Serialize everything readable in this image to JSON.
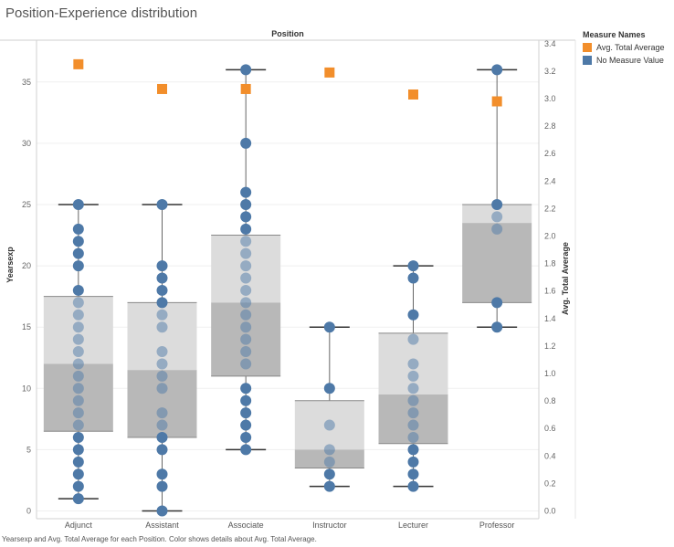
{
  "title": "Position-Experience distribution",
  "caption": "Yearsexp and Avg. Total Average for each Position.  Color shows details about Avg. Total Average.",
  "legend": {
    "title": "Measure Names",
    "items": [
      {
        "label": "Avg. Total Average",
        "color": "#f28e2b",
        "shape": "square"
      },
      {
        "label": "No Measure Value",
        "color": "#4e79a7",
        "shape": "circle"
      }
    ]
  },
  "chart_data": {
    "type": "box",
    "title": "Position-Experience distribution",
    "column_header": "Position",
    "categories": [
      "Adjunct",
      "Assistant",
      "Associate",
      "Instructor",
      "Lecturer",
      "Professor"
    ],
    "left_axis": {
      "label": "Yearsexp",
      "range": [
        0,
        38
      ],
      "ticks": [
        0,
        5,
        10,
        15,
        20,
        25,
        30,
        35
      ]
    },
    "right_axis": {
      "label": "Avg. Total Average",
      "range": [
        0,
        3.4
      ],
      "ticks": [
        "0.0",
        "0.2",
        "0.4",
        "0.6",
        "0.8",
        "1.0",
        "1.2",
        "1.4",
        "1.6",
        "1.8",
        "2.0",
        "2.2",
        "2.4",
        "2.6",
        "2.8",
        "3.0",
        "3.2",
        "3.4"
      ]
    },
    "grid": true,
    "boxes": [
      {
        "category": "Adjunct",
        "min": 1,
        "q1": 6.5,
        "median": 12,
        "q3": 17.5,
        "max": 25
      },
      {
        "category": "Assistant",
        "min": 0,
        "q1": 6,
        "median": 11.5,
        "q3": 17,
        "max": 25
      },
      {
        "category": "Associate",
        "min": 5,
        "q1": 11,
        "median": 17,
        "q3": 22.5,
        "max": 36
      },
      {
        "category": "Instructor",
        "min": 2,
        "q1": 3.5,
        "median": 5,
        "q3": 9,
        "max": 15
      },
      {
        "category": "Lecturer",
        "min": 2,
        "q1": 5.5,
        "median": 9.5,
        "q3": 14.5,
        "max": 20
      },
      {
        "category": "Professor",
        "min": 15,
        "q1": 17,
        "median": 23.5,
        "q3": 25,
        "max": 36
      }
    ],
    "yearsexp_points": [
      {
        "category": "Adjunct",
        "values": [
          1,
          2,
          3,
          4,
          5,
          6,
          7,
          8,
          9,
          10,
          11,
          12,
          13,
          14,
          15,
          16,
          17,
          18,
          20,
          21,
          22,
          23,
          25
        ]
      },
      {
        "category": "Assistant",
        "values": [
          0,
          2,
          3,
          5,
          6,
          7,
          8,
          10,
          11,
          12,
          13,
          15,
          16,
          17,
          18,
          19,
          20,
          25
        ]
      },
      {
        "category": "Associate",
        "values": [
          5,
          6,
          7,
          8,
          9,
          10,
          12,
          13,
          14,
          15,
          16,
          17,
          18,
          19,
          20,
          21,
          22,
          23,
          24,
          25,
          26,
          30,
          36
        ]
      },
      {
        "category": "Instructor",
        "values": [
          2,
          3,
          4,
          5,
          7,
          10,
          15
        ]
      },
      {
        "category": "Lecturer",
        "values": [
          2,
          3,
          4,
          5,
          6,
          7,
          8,
          9,
          10,
          11,
          12,
          14,
          16,
          19,
          20
        ]
      },
      {
        "category": "Professor",
        "values": [
          15,
          17,
          23,
          24,
          25,
          36
        ]
      }
    ],
    "avg_total_average": [
      {
        "category": "Adjunct",
        "value": 3.25
      },
      {
        "category": "Assistant",
        "value": 3.07
      },
      {
        "category": "Associate",
        "value": 3.07
      },
      {
        "category": "Instructor",
        "value": 3.19
      },
      {
        "category": "Lecturer",
        "value": 3.03
      },
      {
        "category": "Professor",
        "value": 2.98
      }
    ],
    "colors": {
      "point": "#4e79a7",
      "square": "#f28e2b",
      "box_upper": "#dcdcdc",
      "box_lower": "#b8b8b8"
    }
  }
}
